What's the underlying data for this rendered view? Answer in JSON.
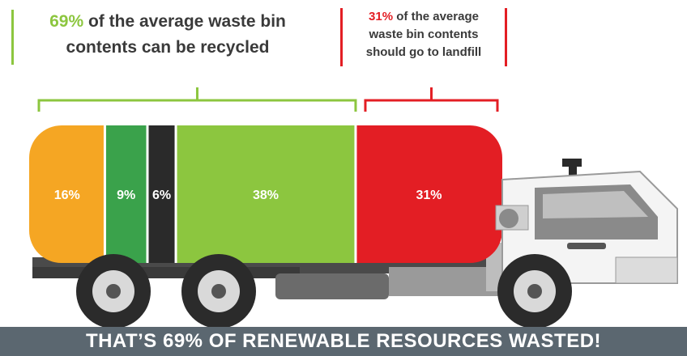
{
  "headline_left": {
    "percent": "69%",
    "text_line1": " of the average waste bin",
    "text_line2": "contents can be recycled"
  },
  "headline_right": {
    "percent": "31%",
    "text_line1": " of the average",
    "text_line2": "waste bin contents",
    "text_line3": "should go to landfill"
  },
  "banner": "THAT’S 69% OF RENEWABLE RESOURCES WASTED!",
  "colors": {
    "orange": "#f5a623",
    "mid_green": "#3aa24b",
    "black": "#2a2a2a",
    "light_green": "#8cc63f",
    "red": "#e31e24"
  },
  "chart_data": {
    "type": "bar",
    "orientation": "stacked-horizontal",
    "categories": [
      "16%",
      "9%",
      "6%",
      "38%",
      "31%"
    ],
    "values": [
      16,
      9,
      6,
      38,
      31
    ],
    "segment_colors": [
      "#f5a623",
      "#3aa24b",
      "#2a2a2a",
      "#8cc63f",
      "#e31e24"
    ],
    "groups": [
      {
        "label": "69%",
        "range": [
          0,
          69
        ],
        "color": "#8cc63f"
      },
      {
        "label": "31%",
        "range": [
          69,
          100
        ],
        "color": "#e31e24"
      }
    ]
  }
}
